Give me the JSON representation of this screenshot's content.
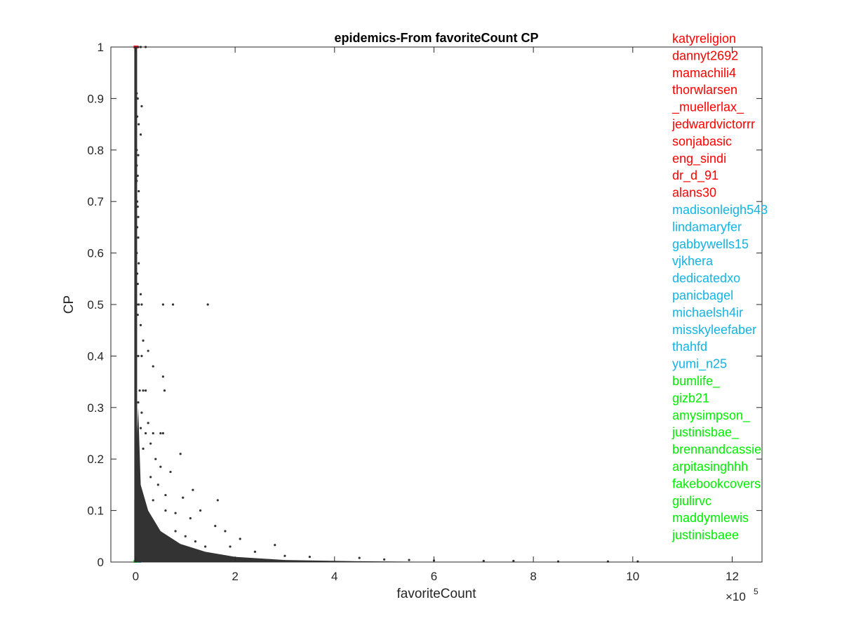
{
  "chart_data": {
    "type": "scatter",
    "title": "epidemics-From favoriteCount CP",
    "xlabel": "favoriteCount",
    "ylabel": "CP",
    "x_multiplier_label": "×10",
    "x_multiplier_exponent": "5",
    "xlim": [
      -0.5,
      12.6
    ],
    "ylim": [
      0,
      1
    ],
    "x_ticks": [
      0,
      2,
      4,
      6,
      8,
      10,
      12
    ],
    "y_ticks": [
      0,
      0.1,
      0.2,
      0.3,
      0.4,
      0.5,
      0.6,
      0.7,
      0.8,
      0.9,
      1
    ],
    "grid": false,
    "point_color": "#333333",
    "labels_color_groups": [
      {
        "color": "#ff0000",
        "names": [
          "katyreligion",
          "dannyt2692",
          "mamachili4",
          "thorwlarsen",
          "_muellerlax_",
          "jedwardvictorrr",
          "sonjabasic",
          "eng_sindi",
          "dr_d_91",
          "alans30"
        ]
      },
      {
        "color": "#12b4e6",
        "names": [
          "madisonleigh543",
          "lindamaryfer",
          "gabbywells15",
          "vjkhera",
          "dedicatedxo",
          "panicbagel",
          "michaelsh4ir",
          "misskyleefaber",
          "thahfd",
          "yumi_n25"
        ]
      },
      {
        "color": "#00ee00",
        "names": [
          "bumlife_",
          "gizb21",
          "amysimpson_",
          "justinisbae_",
          "brennandcassie",
          "arpitasinghhh",
          "fakebookcovers",
          "giulirvc",
          "maddymlewis",
          "justinisbaee"
        ]
      }
    ],
    "series": [
      {
        "points": [
          [
            0.02,
            1.0
          ],
          [
            0.05,
            1.0
          ],
          [
            0.1,
            1.0
          ],
          [
            0.2,
            1.0
          ],
          [
            0.02,
            0.91
          ],
          [
            0.04,
            0.9
          ],
          [
            0.12,
            0.885
          ],
          [
            0.03,
            0.865
          ],
          [
            0.06,
            0.85
          ],
          [
            0.1,
            0.83
          ],
          [
            0.02,
            0.8
          ],
          [
            0.05,
            0.79
          ],
          [
            0.02,
            0.77
          ],
          [
            0.04,
            0.75
          ],
          [
            0.02,
            0.74
          ],
          [
            0.06,
            0.72
          ],
          [
            0.03,
            0.7
          ],
          [
            0.04,
            0.69
          ],
          [
            0.05,
            0.67
          ],
          [
            0.03,
            0.65
          ],
          [
            0.05,
            0.63
          ],
          [
            0.02,
            0.6
          ],
          [
            0.06,
            0.58
          ],
          [
            0.03,
            0.56
          ],
          [
            0.04,
            0.54
          ],
          [
            0.1,
            0.52
          ],
          [
            0.02,
            0.5
          ],
          [
            0.06,
            0.5
          ],
          [
            0.12,
            0.5
          ],
          [
            0.55,
            0.5
          ],
          [
            0.75,
            0.5
          ],
          [
            1.45,
            0.5
          ],
          [
            0.04,
            0.48
          ],
          [
            0.1,
            0.46
          ],
          [
            0.15,
            0.43
          ],
          [
            0.25,
            0.41
          ],
          [
            0.05,
            0.4
          ],
          [
            0.12,
            0.4
          ],
          [
            0.35,
            0.38
          ],
          [
            0.55,
            0.36
          ],
          [
            0.58,
            0.333
          ],
          [
            0.08,
            0.333
          ],
          [
            0.15,
            0.333
          ],
          [
            0.2,
            0.333
          ],
          [
            0.05,
            0.31
          ],
          [
            0.12,
            0.29
          ],
          [
            0.25,
            0.27
          ],
          [
            0.1,
            0.26
          ],
          [
            0.2,
            0.25
          ],
          [
            0.35,
            0.25
          ],
          [
            0.5,
            0.25
          ],
          [
            0.55,
            0.25
          ],
          [
            0.3,
            0.23
          ],
          [
            0.9,
            0.21
          ],
          [
            0.15,
            0.22
          ],
          [
            0.4,
            0.2
          ],
          [
            0.5,
            0.185
          ],
          [
            0.7,
            0.175
          ],
          [
            0.3,
            0.165
          ],
          [
            1.15,
            0.14
          ],
          [
            0.6,
            0.13
          ],
          [
            0.95,
            0.125
          ],
          [
            1.65,
            0.12
          ],
          [
            1.3,
            0.1
          ],
          [
            0.8,
            0.095
          ],
          [
            1.1,
            0.085
          ],
          [
            1.6,
            0.07
          ],
          [
            1.8,
            0.06
          ],
          [
            2.1,
            0.045
          ],
          [
            2.8,
            0.033
          ],
          [
            1.9,
            0.03
          ],
          [
            2.4,
            0.02
          ],
          [
            3.0,
            0.012
          ],
          [
            3.5,
            0.01
          ],
          [
            4.5,
            0.008
          ],
          [
            5.0,
            0.005
          ],
          [
            5.5,
            0.004
          ],
          [
            6.0,
            0.003
          ],
          [
            7.0,
            0.002
          ],
          [
            7.6,
            0.002
          ],
          [
            8.5,
            0.001
          ],
          [
            9.5,
            0.001
          ],
          [
            10.1,
            0.001
          ],
          [
            0.45,
            0.15
          ],
          [
            0.35,
            0.12
          ],
          [
            0.6,
            0.1
          ],
          [
            0.8,
            0.06
          ],
          [
            1.0,
            0.05
          ],
          [
            1.2,
            0.04
          ],
          [
            1.4,
            0.03
          ]
        ]
      }
    ]
  }
}
